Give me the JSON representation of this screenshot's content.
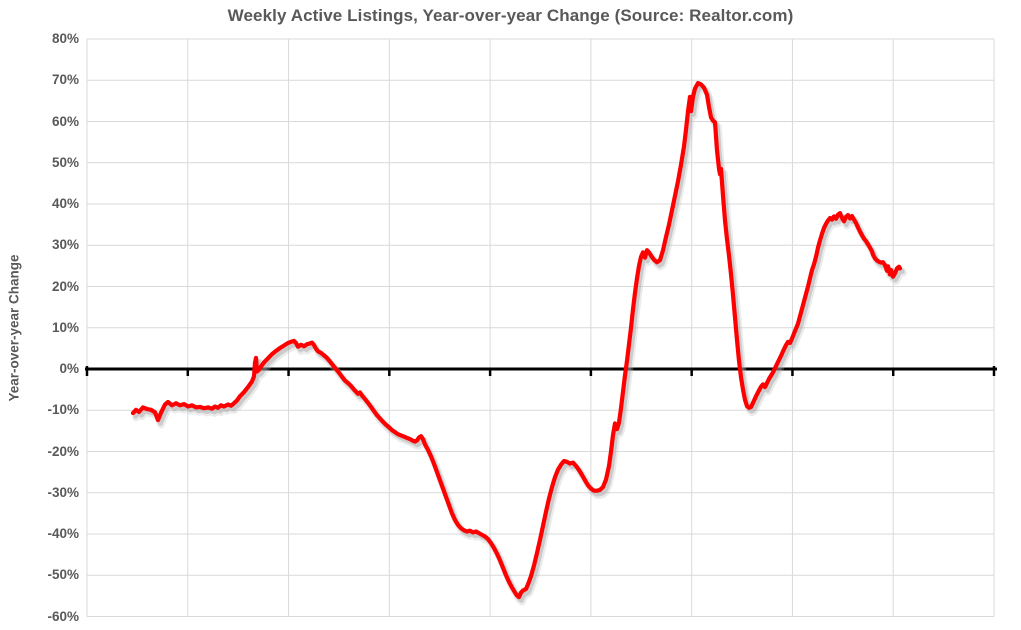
{
  "title": "Weekly Active Listings, Year-over-year Change (Source: Realtor.com)",
  "y_axis": {
    "title": "Year-over-year Change",
    "tick_labels": [
      "80%",
      "70%",
      "60%",
      "50%",
      "40%",
      "30%",
      "20%",
      "10%",
      "0%",
      "-10%",
      "-20%",
      "-30%",
      "-40%",
      "-50%",
      "-60%"
    ],
    "min_pct": -60,
    "max_pct": 80,
    "step_pct": 10
  },
  "x_axis": {
    "tick_labels": [],
    "note": "no x-axis tick labels visible; 9 unlabeled gridline columns"
  },
  "colors": {
    "line": "#FF0000",
    "grid": "#D9D9D9",
    "text": "#595959",
    "zero_axis": "#000000",
    "background": "#FFFFFF"
  },
  "chart_data": {
    "type": "line",
    "title": "Weekly Active Listings, Year-over-year Change (Source: Realtor.com)",
    "xlabel": "",
    "ylabel": "Year-over-year Change",
    "ylim": [
      -60,
      80
    ],
    "y_tick_step": 10,
    "grid": true,
    "legend": false,
    "x_unit": "weekly observations (axis unlabeled); x stored as horizontal chart position in px",
    "series": [
      {
        "name": "Weekly active listings, year-over-year change",
        "color": "#FF0000",
        "points": [
          [
            133,
            -10.7
          ],
          [
            136,
            -9.9
          ],
          [
            139,
            -10.4
          ],
          [
            143,
            -9.3
          ],
          [
            147,
            -9.7
          ],
          [
            151,
            -9.9
          ],
          [
            155,
            -10.5
          ],
          [
            158,
            -12.4
          ],
          [
            161,
            -10.6
          ],
          [
            165,
            -8.6
          ],
          [
            168,
            -8.0
          ],
          [
            172,
            -8.8
          ],
          [
            176,
            -8.3
          ],
          [
            180,
            -8.8
          ],
          [
            184,
            -8.5
          ],
          [
            188,
            -9.1
          ],
          [
            192,
            -8.8
          ],
          [
            196,
            -9.3
          ],
          [
            200,
            -9.2
          ],
          [
            204,
            -9.5
          ],
          [
            208,
            -9.3
          ],
          [
            212,
            -9.6
          ],
          [
            215,
            -9.1
          ],
          [
            218,
            -9.4
          ],
          [
            221,
            -8.8
          ],
          [
            224,
            -9.1
          ],
          [
            228,
            -8.6
          ],
          [
            231,
            -8.9
          ],
          [
            234,
            -8.3
          ],
          [
            237,
            -7.6
          ],
          [
            240,
            -6.6
          ],
          [
            244,
            -5.6
          ],
          [
            248,
            -4.4
          ],
          [
            252,
            -3.0
          ],
          [
            254,
            -1.8
          ],
          [
            255,
            1.5
          ],
          [
            256,
            2.7
          ],
          [
            257,
            -0.6
          ],
          [
            259,
            -0.2
          ],
          [
            261,
            0.6
          ],
          [
            264,
            1.6
          ],
          [
            268,
            2.6
          ],
          [
            272,
            3.6
          ],
          [
            276,
            4.4
          ],
          [
            280,
            5.1
          ],
          [
            284,
            5.7
          ],
          [
            288,
            6.3
          ],
          [
            291,
            6.6
          ],
          [
            294,
            6.8
          ],
          [
            296,
            6.3
          ],
          [
            298,
            5.4
          ],
          [
            301,
            5.9
          ],
          [
            304,
            5.5
          ],
          [
            307,
            6.0
          ],
          [
            310,
            6.2
          ],
          [
            312,
            6.4
          ],
          [
            314,
            5.8
          ],
          [
            316,
            4.9
          ],
          [
            318,
            4.3
          ],
          [
            321,
            3.9
          ],
          [
            324,
            3.3
          ],
          [
            327,
            2.7
          ],
          [
            330,
            1.8
          ],
          [
            333,
            0.9
          ],
          [
            336,
            0.0
          ],
          [
            339,
            -0.9
          ],
          [
            342,
            -1.9
          ],
          [
            345,
            -2.8
          ],
          [
            348,
            -3.4
          ],
          [
            351,
            -4.1
          ],
          [
            354,
            -5.0
          ],
          [
            356,
            -5.5
          ],
          [
            358,
            -6.0
          ],
          [
            360,
            -5.7
          ],
          [
            362,
            -6.4
          ],
          [
            365,
            -7.3
          ],
          [
            368,
            -8.2
          ],
          [
            371,
            -9.2
          ],
          [
            374,
            -10.2
          ],
          [
            377,
            -11.2
          ],
          [
            380,
            -12.0
          ],
          [
            383,
            -12.8
          ],
          [
            386,
            -13.5
          ],
          [
            389,
            -14.1
          ],
          [
            392,
            -14.8
          ],
          [
            395,
            -15.3
          ],
          [
            398,
            -15.8
          ],
          [
            401,
            -16.1
          ],
          [
            404,
            -16.4
          ],
          [
            407,
            -16.7
          ],
          [
            410,
            -17.0
          ],
          [
            413,
            -17.4
          ],
          [
            415,
            -17.6
          ],
          [
            417,
            -17.3
          ],
          [
            419,
            -16.6
          ],
          [
            421,
            -16.3
          ],
          [
            423,
            -17.0
          ],
          [
            425,
            -18.3
          ],
          [
            428,
            -19.6
          ],
          [
            431,
            -21.2
          ],
          [
            434,
            -23.0
          ],
          [
            437,
            -25.0
          ],
          [
            440,
            -27.0
          ],
          [
            443,
            -29.0
          ],
          [
            446,
            -31.0
          ],
          [
            449,
            -33.0
          ],
          [
            452,
            -35.0
          ],
          [
            455,
            -36.6
          ],
          [
            458,
            -37.8
          ],
          [
            461,
            -38.6
          ],
          [
            464,
            -39.1
          ],
          [
            467,
            -39.4
          ],
          [
            470,
            -39.2
          ],
          [
            473,
            -39.6
          ],
          [
            476,
            -39.4
          ],
          [
            479,
            -39.8
          ],
          [
            482,
            -40.2
          ],
          [
            485,
            -40.6
          ],
          [
            488,
            -41.2
          ],
          [
            491,
            -42.2
          ],
          [
            494,
            -43.4
          ],
          [
            497,
            -44.8
          ],
          [
            500,
            -46.4
          ],
          [
            503,
            -48.2
          ],
          [
            506,
            -50.0
          ],
          [
            509,
            -51.6
          ],
          [
            512,
            -53.0
          ],
          [
            515,
            -54.2
          ],
          [
            517,
            -54.9
          ],
          [
            519,
            -55.3
          ],
          [
            521,
            -54.2
          ],
          [
            523,
            -53.7
          ],
          [
            526,
            -53.3
          ],
          [
            528,
            -52.2
          ],
          [
            531,
            -50.2
          ],
          [
            534,
            -47.6
          ],
          [
            537,
            -44.6
          ],
          [
            540,
            -41.4
          ],
          [
            543,
            -38.0
          ],
          [
            546,
            -34.6
          ],
          [
            549,
            -31.4
          ],
          [
            552,
            -28.6
          ],
          [
            555,
            -26.2
          ],
          [
            558,
            -24.4
          ],
          [
            561,
            -23.2
          ],
          [
            564,
            -22.3
          ],
          [
            567,
            -22.5
          ],
          [
            570,
            -22.9
          ],
          [
            573,
            -22.7
          ],
          [
            576,
            -23.5
          ],
          [
            579,
            -24.5
          ],
          [
            582,
            -25.7
          ],
          [
            585,
            -27.0
          ],
          [
            588,
            -28.2
          ],
          [
            591,
            -29.0
          ],
          [
            594,
            -29.5
          ],
          [
            597,
            -29.5
          ],
          [
            600,
            -29.3
          ],
          [
            603,
            -28.6
          ],
          [
            606,
            -26.8
          ],
          [
            609,
            -23.5
          ],
          [
            611,
            -20.0
          ],
          [
            613,
            -16.0
          ],
          [
            615,
            -13.2
          ],
          [
            617,
            -14.6
          ],
          [
            619,
            -13.0
          ],
          [
            621,
            -9.5
          ],
          [
            623,
            -5.5
          ],
          [
            625,
            -1.5
          ],
          [
            627,
            2.0
          ],
          [
            629,
            6.0
          ],
          [
            631,
            10.0
          ],
          [
            633,
            14.5
          ],
          [
            635,
            18.5
          ],
          [
            637,
            22.0
          ],
          [
            639,
            25.0
          ],
          [
            641,
            27.2
          ],
          [
            643,
            28.3
          ],
          [
            645,
            27.0
          ],
          [
            647,
            28.8
          ],
          [
            649,
            28.3
          ],
          [
            651,
            27.5
          ],
          [
            654,
            26.5
          ],
          [
            657,
            25.9
          ],
          [
            660,
            26.4
          ],
          [
            663,
            28.8
          ],
          [
            666,
            32.0
          ],
          [
            669,
            35.0
          ],
          [
            672,
            38.5
          ],
          [
            675,
            42.0
          ],
          [
            678,
            45.5
          ],
          [
            681,
            49.5
          ],
          [
            684,
            54.0
          ],
          [
            686,
            58.0
          ],
          [
            688,
            62.5
          ],
          [
            690,
            66.0
          ],
          [
            691,
            62.5
          ],
          [
            693,
            66.0
          ],
          [
            695,
            68.0
          ],
          [
            698,
            69.3
          ],
          [
            701,
            69.0
          ],
          [
            704,
            68.2
          ],
          [
            707,
            66.5
          ],
          [
            709,
            63.5
          ],
          [
            711,
            61.0
          ],
          [
            713,
            60.2
          ],
          [
            715,
            59.8
          ],
          [
            717,
            53.0
          ],
          [
            719,
            48.5
          ],
          [
            720,
            47.2
          ],
          [
            721,
            48.5
          ],
          [
            723,
            42.0
          ],
          [
            725,
            36.0
          ],
          [
            727,
            31.5
          ],
          [
            729,
            27.5
          ],
          [
            731,
            23.0
          ],
          [
            733,
            18.0
          ],
          [
            735,
            12.5
          ],
          [
            737,
            7.0
          ],
          [
            739,
            2.0
          ],
          [
            741,
            -2.0
          ],
          [
            743,
            -5.0
          ],
          [
            745,
            -7.5
          ],
          [
            747,
            -9.0
          ],
          [
            749,
            -9.4
          ],
          [
            751,
            -9.2
          ],
          [
            753,
            -8.2
          ],
          [
            756,
            -6.6
          ],
          [
            759,
            -5.2
          ],
          [
            761,
            -4.3
          ],
          [
            763,
            -3.7
          ],
          [
            765,
            -4.4
          ],
          [
            767,
            -3.4
          ],
          [
            769,
            -2.4
          ],
          [
            771,
            -1.6
          ],
          [
            773,
            -0.8
          ],
          [
            775,
            0.2
          ],
          [
            777,
            1.2
          ],
          [
            779,
            2.2
          ],
          [
            781,
            3.2
          ],
          [
            783,
            4.3
          ],
          [
            786,
            5.8
          ],
          [
            788,
            6.6
          ],
          [
            790,
            6.3
          ],
          [
            792,
            7.4
          ],
          [
            794,
            8.6
          ],
          [
            796,
            9.8
          ],
          [
            798,
            11.0
          ],
          [
            800,
            12.8
          ],
          [
            802,
            14.6
          ],
          [
            804,
            16.4
          ],
          [
            806,
            18.2
          ],
          [
            808,
            20.0
          ],
          [
            810,
            22.0
          ],
          [
            812,
            24.0
          ],
          [
            814,
            25.4
          ],
          [
            816,
            27.2
          ],
          [
            818,
            29.4
          ],
          [
            820,
            31.2
          ],
          [
            822,
            32.8
          ],
          [
            824,
            34.2
          ],
          [
            826,
            35.2
          ],
          [
            828,
            36.0
          ],
          [
            830,
            36.6
          ],
          [
            832,
            36.2
          ],
          [
            834,
            37.0
          ],
          [
            836,
            36.4
          ],
          [
            838,
            37.4
          ],
          [
            840,
            37.8
          ],
          [
            842,
            36.6
          ],
          [
            844,
            35.8
          ],
          [
            846,
            36.9
          ],
          [
            848,
            37.3
          ],
          [
            850,
            36.5
          ],
          [
            852,
            37.1
          ],
          [
            854,
            36.2
          ],
          [
            856,
            35.4
          ],
          [
            858,
            34.3
          ],
          [
            860,
            33.3
          ],
          [
            862,
            32.4
          ],
          [
            864,
            31.6
          ],
          [
            866,
            31.0
          ],
          [
            868,
            30.2
          ],
          [
            870,
            29.4
          ],
          [
            872,
            28.5
          ],
          [
            873,
            27.7
          ],
          [
            875,
            26.8
          ],
          [
            877,
            26.3
          ],
          [
            879,
            26.0
          ],
          [
            881,
            25.8
          ],
          [
            883,
            25.9
          ],
          [
            885,
            25.2
          ],
          [
            887,
            23.8
          ],
          [
            888,
            24.9
          ],
          [
            890,
            22.9
          ],
          [
            891,
            24.0
          ],
          [
            893,
            22.4
          ],
          [
            895,
            23.2
          ],
          [
            897,
            24.4
          ],
          [
            899,
            24.8
          ],
          [
            900,
            24.4
          ]
        ]
      }
    ]
  }
}
